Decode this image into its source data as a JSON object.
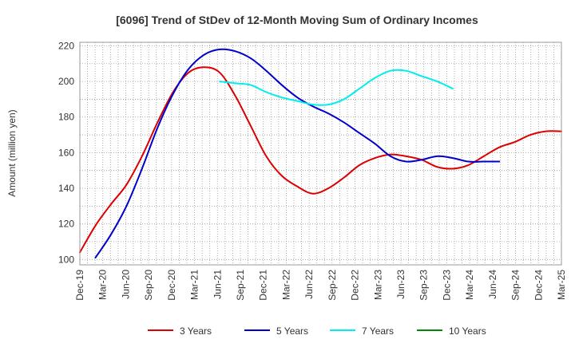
{
  "chart_data": {
    "type": "line",
    "title": "[6096]  Trend of StDev of 12-Month Moving Sum of Ordinary Incomes",
    "xlabel": "",
    "ylabel": "Amount (million yen)",
    "ylim": [
      97,
      222
    ],
    "y_ticks": [
      100,
      120,
      140,
      160,
      180,
      200,
      220
    ],
    "x_tick_labels": [
      "Dec-19",
      "Mar-20",
      "Jun-20",
      "Sep-20",
      "Dec-20",
      "Mar-21",
      "Jun-21",
      "Sep-21",
      "Dec-21",
      "Mar-22",
      "Jun-22",
      "Sep-22",
      "Dec-22",
      "Mar-23",
      "Jun-23",
      "Sep-23",
      "Dec-23",
      "Mar-24",
      "Jun-24",
      "Sep-24",
      "Dec-24",
      "Mar-25"
    ],
    "grid": true,
    "legend_position": "bottom",
    "series": [
      {
        "name": "3 Years",
        "color": "#dd0000",
        "start_index": 0,
        "values": [
          104,
          119,
          131,
          142,
          158,
          177,
          194,
          205,
          208,
          205,
          192,
          175,
          158,
          147,
          141,
          137,
          140,
          146,
          153,
          157,
          159,
          158,
          156,
          152,
          151,
          153,
          158,
          163,
          166,
          170,
          172,
          172
        ]
      },
      {
        "name": "5 Years",
        "color": "#0000cc",
        "start_index": 1,
        "values": [
          101,
          114,
          130,
          151,
          174,
          193,
          207,
          215,
          218,
          217,
          213,
          206,
          198,
          191,
          186,
          182,
          177,
          171,
          165,
          158,
          155,
          156,
          158,
          157,
          155,
          155,
          155
        ]
      },
      {
        "name": "7 Years",
        "color": "#00eeee",
        "start_index": 9,
        "values": [
          200,
          199,
          198,
          194,
          191,
          189,
          187,
          187,
          190,
          196,
          202,
          206,
          206,
          203,
          200,
          196
        ]
      },
      {
        "name": "10 Years",
        "color": "#008800",
        "start_index": 0,
        "values": []
      }
    ]
  }
}
